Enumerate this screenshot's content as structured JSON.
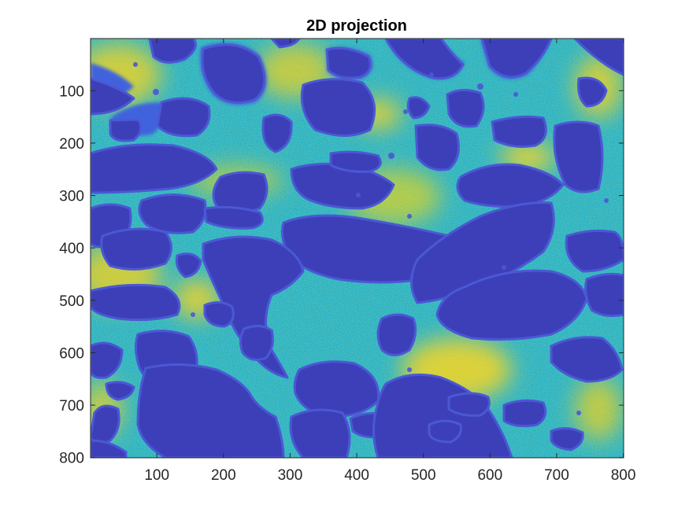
{
  "title": "2D projection",
  "image": {
    "description": "projection",
    "x_range": [
      1,
      800
    ],
    "y_range": [
      1,
      800
    ],
    "y_reversed": true,
    "colormap": "parula",
    "colors": {
      "pore": "#3c3db8",
      "pore_edge": "#4a55d0",
      "wall_low": "#2aa0e8",
      "wall_mid": "#22c3b6",
      "wall_high": "#cbc83a",
      "wall_peak": "#e8d82c"
    }
  },
  "axes": {
    "xticks": [
      "100",
      "200",
      "300",
      "400",
      "500",
      "600",
      "700",
      "800"
    ],
    "yticks": [
      "100",
      "200",
      "300",
      "400",
      "500",
      "600",
      "700",
      "800"
    ]
  },
  "chart_data": {
    "type": "heatmap",
    "title": "2D projection",
    "xlabel": "",
    "ylabel": "",
    "xlim": [
      1,
      800
    ],
    "ylim": [
      800,
      1
    ],
    "xticks": [
      100,
      200,
      300,
      400,
      500,
      600,
      700,
      800
    ],
    "yticks": [
      100,
      200,
      300,
      400,
      500,
      600,
      700,
      800
    ],
    "colormap": "parula",
    "grid": false,
    "legend": "none"
  }
}
